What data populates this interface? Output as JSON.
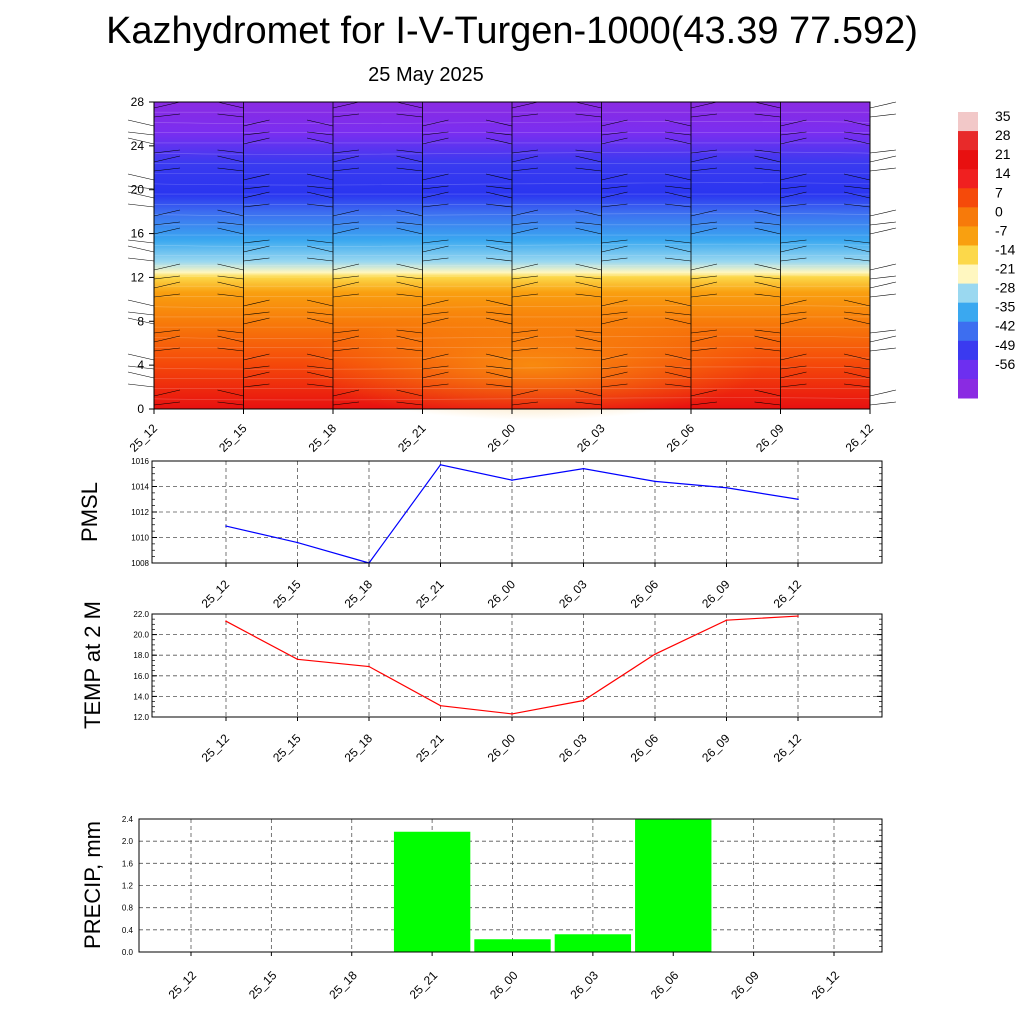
{
  "title": "Kazhydromet for I-V-Turgen-1000(43.39 77.592)",
  "date": "25 May 2025",
  "colors": {
    "pmsl_line": "#0000ff",
    "temp_line": "#ff0000",
    "precip_bar": "#00ff00"
  },
  "chart_data": [
    {
      "type": "heatmap",
      "title": "",
      "x_tick_labels": [
        "25_12",
        "25_15",
        "25_18",
        "25_21",
        "26_00",
        "26_03",
        "26_06",
        "26_09",
        "26_12"
      ],
      "y_ticks": [
        0,
        4,
        8,
        12,
        16,
        20,
        24,
        28
      ],
      "ylim": [
        0,
        28
      ],
      "color_levels": [
        35,
        28,
        21,
        14,
        7,
        0,
        -7,
        -14,
        -21,
        -28,
        -35,
        -42,
        -49,
        -56
      ],
      "colorbar_colors": [
        "#f2c8c8",
        "#e82a2a",
        "#e81010",
        "#f02020",
        "#f54a0a",
        "#f77a0a",
        "#f9a010",
        "#fcd84a",
        "#fff7c0",
        "#9ad8f0",
        "#3aa8f0",
        "#3d6ef0",
        "#3a3af0",
        "#6d2ff0",
        "#8a2be2"
      ],
      "series": [
        {
          "level_km": 0,
          "values_c": [
            30,
            29,
            27,
            24,
            23,
            24,
            27,
            29,
            31
          ]
        },
        {
          "level_km": 4,
          "values_c": [
            24,
            22,
            19,
            15,
            14,
            14,
            16,
            20,
            23
          ]
        },
        {
          "level_km": 8,
          "values_c": [
            10,
            10,
            9,
            6,
            5,
            5,
            6,
            8,
            10
          ]
        },
        {
          "level_km": 12,
          "values_c": [
            -12,
            -12,
            -12,
            -12,
            -12,
            -12,
            -12,
            -12,
            -12
          ]
        },
        {
          "level_km": 16,
          "values_c": [
            -32,
            -32,
            -33,
            -33,
            -33,
            -33,
            -33,
            -32,
            -32
          ]
        },
        {
          "level_km": 20,
          "values_c": [
            -55,
            -55,
            -54,
            -55,
            -55,
            -55,
            -54,
            -55,
            -55
          ]
        },
        {
          "level_km": 24,
          "values_c": [
            -60,
            -60,
            -60,
            -60,
            -60,
            -60,
            -60,
            -60,
            -60
          ]
        },
        {
          "level_km": 28,
          "values_c": [
            -58,
            -58,
            -58,
            -58,
            -58,
            -58,
            -58,
            -58,
            -58
          ]
        }
      ]
    },
    {
      "type": "line",
      "ylabel": "PMSL",
      "categories": [
        "25_12",
        "25_15",
        "25_18",
        "25_21",
        "26_00",
        "26_03",
        "26_06",
        "26_09",
        "26_12"
      ],
      "values": [
        1010.9,
        1009.6,
        1008.0,
        1015.7,
        1014.5,
        1015.4,
        1014.4,
        1013.9,
        1013.0
      ],
      "ylim": [
        1008,
        1016
      ],
      "y_ticks": [
        "1016",
        "1014",
        "1012",
        "1010",
        "1008"
      ],
      "grid": true
    },
    {
      "type": "line",
      "ylabel": "TEMP at 2 M",
      "categories": [
        "25_12",
        "25_15",
        "25_18",
        "25_21",
        "26_00",
        "26_03",
        "26_06",
        "26_09",
        "26_12"
      ],
      "values": [
        21.3,
        17.6,
        16.9,
        13.1,
        12.3,
        13.6,
        18.1,
        21.4,
        21.8
      ],
      "ylim": [
        12,
        22
      ],
      "y_ticks": [
        "22.0",
        "20.0",
        "18.0",
        "16.0",
        "14.0",
        "12.0"
      ],
      "grid": true
    },
    {
      "type": "bar",
      "ylabel": "PRECIP, mm",
      "categories": [
        "25_12",
        "25_15",
        "25_18",
        "25_21",
        "26_00",
        "26_03",
        "26_06",
        "26_09",
        "26_12"
      ],
      "values": [
        0,
        0,
        0,
        2.17,
        0.23,
        0.32,
        2.39,
        0,
        0
      ],
      "ylim": [
        0,
        2.4
      ],
      "y_ticks": [
        "2.4",
        "2.0",
        "1.6",
        "1.2",
        "0.8",
        "0.4",
        "0.0"
      ],
      "grid": true
    }
  ]
}
